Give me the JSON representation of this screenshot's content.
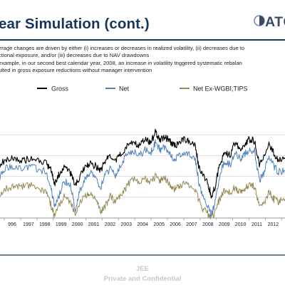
{
  "header": {
    "title": "ear Simulation (cont.)",
    "logo_text": "ATC"
  },
  "bullets": [
    "erage changes are driven by either (i) increases or decreases in realized volatility, (ii) decreases due to",
    "ctional exposure, and/or (iii) decreases due to NAV drawdowns",
    "example, in our second best calendar year, 2008, an increase in volatility triggered systematic rebalan",
    "ulted in gross  exposure reductions without manager intervention"
  ],
  "footer": {
    "line1": "JEE",
    "line2": "Private and Confidential"
  },
  "colors": {
    "title": "#17365d",
    "gross": "#000000",
    "net": "#4f81bd",
    "net_ex": "#948a54"
  },
  "chart_data": {
    "type": "line",
    "title": "",
    "xlabel": "",
    "ylabel": "",
    "x_ticks": [
      "996",
      "1997",
      "1998",
      "1999",
      "2000",
      "2001",
      "2002",
      "2003",
      "2004",
      "2005",
      "2006",
      "2007",
      "2008",
      "2009",
      "2010",
      "2011",
      "2012",
      "2"
    ],
    "x_range": [
      1995.6,
      2013.4
    ],
    "y_range": [
      0,
      100
    ],
    "y_axis_labels_shown": false,
    "grid": "horizontal",
    "legend_position": "top",
    "series": [
      {
        "name": "Gross",
        "color": "#000000",
        "points": [
          [
            1995.6,
            52
          ],
          [
            1996.0,
            56
          ],
          [
            1996.5,
            57
          ],
          [
            1997.0,
            55
          ],
          [
            1997.5,
            57
          ],
          [
            1998.0,
            55
          ],
          [
            1998.5,
            52
          ],
          [
            1998.8,
            46
          ],
          [
            1999.0,
            33
          ],
          [
            1999.3,
            42
          ],
          [
            1999.6,
            48
          ],
          [
            2000.0,
            43
          ],
          [
            2000.3,
            32
          ],
          [
            2000.6,
            40
          ],
          [
            2000.9,
            48
          ],
          [
            2001.2,
            52
          ],
          [
            2001.6,
            50
          ],
          [
            2001.9,
            46
          ],
          [
            2002.2,
            56
          ],
          [
            2002.5,
            58
          ],
          [
            2002.8,
            55
          ],
          [
            2003.1,
            60
          ],
          [
            2003.5,
            68
          ],
          [
            2003.9,
            74
          ],
          [
            2004.3,
            70
          ],
          [
            2004.7,
            76
          ],
          [
            2005.0,
            72
          ],
          [
            2005.3,
            82
          ],
          [
            2005.6,
            76
          ],
          [
            2005.9,
            78
          ],
          [
            2006.2,
            74
          ],
          [
            2006.5,
            69
          ],
          [
            2006.8,
            72
          ],
          [
            2007.1,
            76
          ],
          [
            2007.4,
            74
          ],
          [
            2007.8,
            70
          ],
          [
            2008.0,
            50
          ],
          [
            2008.3,
            40
          ],
          [
            2008.6,
            32
          ],
          [
            2008.8,
            22
          ],
          [
            2009.0,
            28
          ],
          [
            2009.3,
            50
          ],
          [
            2009.6,
            62
          ],
          [
            2010.0,
            60
          ],
          [
            2010.3,
            74
          ],
          [
            2010.6,
            66
          ],
          [
            2010.9,
            72
          ],
          [
            2011.2,
            76
          ],
          [
            2011.5,
            74
          ],
          [
            2011.8,
            52
          ],
          [
            2012.1,
            60
          ],
          [
            2012.4,
            70
          ],
          [
            2012.7,
            62
          ],
          [
            2013.0,
            55
          ],
          [
            2013.4,
            57
          ]
        ]
      },
      {
        "name": "Net",
        "color": "#4f81bd",
        "points": [
          [
            1995.6,
            40
          ],
          [
            1996.0,
            48
          ],
          [
            1996.5,
            50
          ],
          [
            1997.0,
            48
          ],
          [
            1997.5,
            50
          ],
          [
            1998.0,
            47
          ],
          [
            1998.5,
            44
          ],
          [
            1998.8,
            28
          ],
          [
            1999.0,
            12
          ],
          [
            1999.3,
            22
          ],
          [
            1999.6,
            36
          ],
          [
            2000.0,
            32
          ],
          [
            2000.3,
            8
          ],
          [
            2000.6,
            26
          ],
          [
            2000.9,
            36
          ],
          [
            2001.2,
            44
          ],
          [
            2001.6,
            38
          ],
          [
            2001.9,
            30
          ],
          [
            2002.2,
            42
          ],
          [
            2002.5,
            48
          ],
          [
            2002.8,
            40
          ],
          [
            2003.1,
            50
          ],
          [
            2003.5,
            60
          ],
          [
            2003.9,
            64
          ],
          [
            2004.3,
            60
          ],
          [
            2004.7,
            66
          ],
          [
            2005.0,
            62
          ],
          [
            2005.3,
            72
          ],
          [
            2005.6,
            66
          ],
          [
            2005.9,
            68
          ],
          [
            2006.2,
            62
          ],
          [
            2006.5,
            56
          ],
          [
            2006.8,
            60
          ],
          [
            2007.1,
            64
          ],
          [
            2007.4,
            62
          ],
          [
            2007.8,
            56
          ],
          [
            2008.0,
            36
          ],
          [
            2008.3,
            18
          ],
          [
            2008.6,
            12
          ],
          [
            2008.8,
            4
          ],
          [
            2009.0,
            12
          ],
          [
            2009.3,
            40
          ],
          [
            2009.6,
            54
          ],
          [
            2010.0,
            52
          ],
          [
            2010.3,
            64
          ],
          [
            2010.6,
            56
          ],
          [
            2010.9,
            62
          ],
          [
            2011.2,
            66
          ],
          [
            2011.5,
            64
          ],
          [
            2011.8,
            36
          ],
          [
            2012.1,
            44
          ],
          [
            2012.4,
            60
          ],
          [
            2012.7,
            50
          ],
          [
            2013.0,
            44
          ],
          [
            2013.4,
            46
          ]
        ]
      },
      {
        "name": "Net Ex-WGBI,TIPS",
        "color": "#948a54",
        "points": [
          [
            1995.6,
            22
          ],
          [
            1996.0,
            28
          ],
          [
            1996.5,
            32
          ],
          [
            1997.0,
            30
          ],
          [
            1997.5,
            32
          ],
          [
            1998.0,
            30
          ],
          [
            1998.5,
            24
          ],
          [
            1998.8,
            12
          ],
          [
            1999.0,
            2
          ],
          [
            1999.3,
            12
          ],
          [
            1999.6,
            20
          ],
          [
            2000.0,
            16
          ],
          [
            2000.3,
            2
          ],
          [
            2000.6,
            14
          ],
          [
            2000.9,
            20
          ],
          [
            2001.2,
            24
          ],
          [
            2001.6,
            18
          ],
          [
            2001.9,
            6
          ],
          [
            2002.2,
            12
          ],
          [
            2002.5,
            22
          ],
          [
            2002.8,
            14
          ],
          [
            2003.1,
            22
          ],
          [
            2003.5,
            30
          ],
          [
            2003.9,
            38
          ],
          [
            2004.3,
            34
          ],
          [
            2004.7,
            38
          ],
          [
            2005.0,
            34
          ],
          [
            2005.3,
            40
          ],
          [
            2005.6,
            36
          ],
          [
            2005.9,
            38
          ],
          [
            2006.2,
            32
          ],
          [
            2006.5,
            28
          ],
          [
            2006.8,
            30
          ],
          [
            2007.1,
            34
          ],
          [
            2007.4,
            32
          ],
          [
            2007.8,
            28
          ],
          [
            2008.0,
            18
          ],
          [
            2008.3,
            8
          ],
          [
            2008.6,
            4
          ],
          [
            2008.8,
            0
          ],
          [
            2009.0,
            4
          ],
          [
            2009.3,
            18
          ],
          [
            2009.6,
            26
          ],
          [
            2010.0,
            24
          ],
          [
            2010.3,
            30
          ],
          [
            2010.6,
            24
          ],
          [
            2010.9,
            28
          ],
          [
            2011.2,
            32
          ],
          [
            2011.5,
            30
          ],
          [
            2011.8,
            10
          ],
          [
            2012.1,
            14
          ],
          [
            2012.4,
            26
          ],
          [
            2012.7,
            18
          ],
          [
            2013.0,
            16
          ],
          [
            2013.4,
            18
          ]
        ]
      }
    ]
  }
}
